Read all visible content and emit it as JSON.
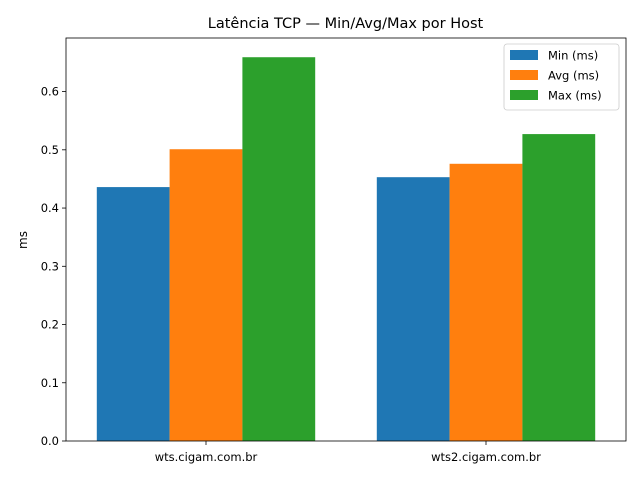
{
  "chart_data": {
    "type": "bar",
    "title": "Latência TCP — Min/Avg/Max por Host",
    "xlabel": "",
    "ylabel": "ms",
    "categories": [
      "wts.cigam.com.br",
      "wts2.cigam.com.br"
    ],
    "series": [
      {
        "name": "Min (ms)",
        "values": [
          0.436,
          0.453
        ],
        "color": "#1f77b4"
      },
      {
        "name": "Avg (ms)",
        "values": [
          0.501,
          0.476
        ],
        "color": "#ff7f0e"
      },
      {
        "name": "Max (ms)",
        "values": [
          0.659,
          0.527
        ],
        "color": "#2ca02c"
      }
    ],
    "ylim": [
      0,
      0.692
    ],
    "yticks": [
      "0.0",
      "0.1",
      "0.2",
      "0.3",
      "0.4",
      "0.5",
      "0.6"
    ],
    "grid": false,
    "legend_position": "top-right"
  }
}
